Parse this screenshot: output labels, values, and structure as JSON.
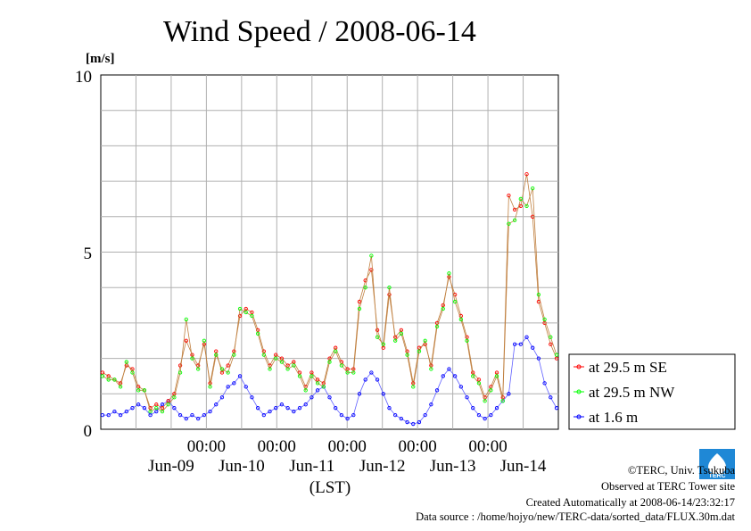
{
  "chart_data": {
    "type": "line",
    "title": "Wind Speed / 2008-06-14",
    "ylabel": "[m/s]",
    "xlabel": "(LST)",
    "ylim": [
      0,
      10
    ],
    "y_ticks": [
      "0",
      "5",
      "10"
    ],
    "x_time_ticks": [
      "00:00",
      "00:00",
      "00:00",
      "00:00",
      "00:00"
    ],
    "x_date_ticks": [
      "Jun-09",
      "Jun-10",
      "Jun-11",
      "Jun-12",
      "Jun-13",
      "Jun-14"
    ],
    "grid": true,
    "legend_position": "right",
    "x_range": [
      "2008-06-08 12:00",
      "2008-06-14 24:00"
    ],
    "series": [
      {
        "name": "at 29.5 m SE",
        "color": "#ff0000",
        "values": [
          1.6,
          1.5,
          1.4,
          1.3,
          1.8,
          1.7,
          1.2,
          1.1,
          0.6,
          0.7,
          0.6,
          0.8,
          1.0,
          1.8,
          2.5,
          2.1,
          1.8,
          2.4,
          1.3,
          2.2,
          1.6,
          1.8,
          2.2,
          3.2,
          3.4,
          3.3,
          2.8,
          2.2,
          1.8,
          2.1,
          2.0,
          1.8,
          1.9,
          1.6,
          1.2,
          1.6,
          1.4,
          1.3,
          2.0,
          2.3,
          1.9,
          1.7,
          1.7,
          3.6,
          4.2,
          4.5,
          2.8,
          2.3,
          3.8,
          2.6,
          2.8,
          2.2,
          1.3,
          2.3,
          2.4,
          1.8,
          3.0,
          3.5,
          4.3,
          3.8,
          3.2,
          2.6,
          1.6,
          1.4,
          0.9,
          1.2,
          1.6,
          0.9,
          6.6,
          6.2,
          6.3,
          7.2,
          6.0,
          3.6,
          3.0,
          2.4,
          2.0
        ]
      },
      {
        "name": "at 29.5 m NW",
        "color": "#00ff00",
        "values": [
          1.5,
          1.4,
          1.4,
          1.2,
          1.9,
          1.6,
          1.1,
          1.1,
          0.5,
          0.6,
          0.5,
          0.7,
          0.9,
          1.6,
          3.1,
          2.0,
          1.7,
          2.5,
          1.2,
          2.1,
          1.7,
          1.6,
          2.1,
          3.4,
          3.3,
          3.2,
          2.7,
          2.1,
          1.7,
          2.0,
          1.9,
          1.7,
          1.8,
          1.5,
          1.1,
          1.5,
          1.3,
          1.2,
          1.9,
          2.2,
          1.8,
          1.6,
          1.6,
          3.4,
          4.0,
          4.9,
          2.6,
          2.4,
          4.0,
          2.5,
          2.7,
          2.1,
          1.2,
          2.2,
          2.5,
          1.7,
          2.9,
          3.4,
          4.4,
          3.6,
          3.1,
          2.5,
          1.5,
          1.3,
          0.8,
          1.1,
          1.5,
          0.8,
          5.8,
          5.9,
          6.5,
          6.3,
          6.8,
          3.8,
          3.1,
          2.6,
          2.1
        ]
      },
      {
        "name": "at 1.6 m",
        "color": "#0000ff",
        "values": [
          0.4,
          0.4,
          0.5,
          0.4,
          0.5,
          0.6,
          0.7,
          0.6,
          0.4,
          0.5,
          0.7,
          0.8,
          0.6,
          0.4,
          0.3,
          0.4,
          0.3,
          0.4,
          0.5,
          0.7,
          0.9,
          1.2,
          1.3,
          1.5,
          1.2,
          0.9,
          0.6,
          0.4,
          0.5,
          0.6,
          0.7,
          0.6,
          0.5,
          0.6,
          0.7,
          0.9,
          1.1,
          1.2,
          0.9,
          0.6,
          0.4,
          0.3,
          0.4,
          1.0,
          1.4,
          1.6,
          1.4,
          1.0,
          0.6,
          0.4,
          0.3,
          0.2,
          0.15,
          0.2,
          0.4,
          0.7,
          1.1,
          1.5,
          1.7,
          1.5,
          1.2,
          0.9,
          0.6,
          0.4,
          0.3,
          0.4,
          0.6,
          0.8,
          1.0,
          2.4,
          2.4,
          2.6,
          2.3,
          2.0,
          1.3,
          0.9,
          0.6
        ]
      }
    ]
  },
  "footer": {
    "copyright": "©TERC, Univ. Tsukuba",
    "observed": "Observed at TERC Tower site",
    "created": "Created Automatically at 2008-06-14/23:32:17",
    "source": "Data source : /home/hojyo/new/TERC-data/sorted_data/FLUX.30m.dat"
  },
  "logo": {
    "text": "TERC",
    "color": "#1f88d6"
  }
}
